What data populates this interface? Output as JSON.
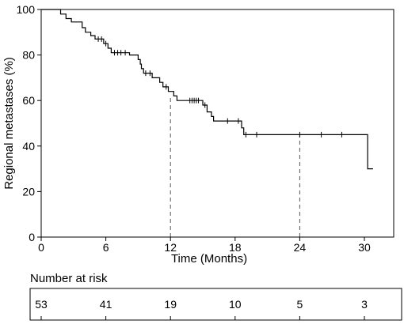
{
  "chart_data": {
    "type": "line",
    "step": true,
    "xlabel": "Time (Months)",
    "ylabel": "Regional metastases (%)",
    "xlim": [
      0,
      31
    ],
    "ylim": [
      0,
      100
    ],
    "xticks": [
      0,
      6,
      12,
      18,
      24,
      30
    ],
    "yticks": [
      0,
      20,
      40,
      60,
      80,
      100
    ],
    "grid": false,
    "series": [
      {
        "points": [
          [
            0,
            100
          ],
          [
            1.8,
            100
          ],
          [
            1.8,
            98
          ],
          [
            2.3,
            98
          ],
          [
            2.3,
            96
          ],
          [
            2.8,
            96
          ],
          [
            2.8,
            94.5
          ],
          [
            3.8,
            94.5
          ],
          [
            3.8,
            92
          ],
          [
            4.1,
            92
          ],
          [
            4.1,
            90
          ],
          [
            4.6,
            90
          ],
          [
            4.6,
            88.5
          ],
          [
            5.0,
            88.5
          ],
          [
            5.0,
            87
          ],
          [
            5.8,
            87
          ],
          [
            5.8,
            85
          ],
          [
            6.2,
            85
          ],
          [
            6.2,
            83
          ],
          [
            6.5,
            83
          ],
          [
            6.5,
            81
          ],
          [
            8.2,
            81
          ],
          [
            8.2,
            80
          ],
          [
            9.0,
            80
          ],
          [
            9.0,
            78
          ],
          [
            9.2,
            78
          ],
          [
            9.2,
            76
          ],
          [
            9.3,
            76
          ],
          [
            9.3,
            74
          ],
          [
            9.5,
            74
          ],
          [
            9.5,
            72
          ],
          [
            10.3,
            72
          ],
          [
            10.3,
            70
          ],
          [
            11.0,
            70
          ],
          [
            11.0,
            68
          ],
          [
            11.3,
            68
          ],
          [
            11.3,
            66
          ],
          [
            11.8,
            66
          ],
          [
            11.8,
            64
          ],
          [
            12.3,
            64
          ],
          [
            12.3,
            62
          ],
          [
            12.6,
            62
          ],
          [
            12.6,
            60
          ],
          [
            15.0,
            60
          ],
          [
            15.0,
            58
          ],
          [
            15.4,
            58
          ],
          [
            15.4,
            55
          ],
          [
            15.8,
            55
          ],
          [
            15.8,
            53
          ],
          [
            16.0,
            53
          ],
          [
            16.0,
            51
          ],
          [
            18.6,
            51
          ],
          [
            18.6,
            48
          ],
          [
            18.8,
            48
          ],
          [
            18.8,
            45
          ],
          [
            30.3,
            45
          ],
          [
            30.3,
            30
          ],
          [
            30.8,
            30
          ]
        ],
        "censored": [
          [
            5.3,
            87
          ],
          [
            5.6,
            87
          ],
          [
            6.0,
            85
          ],
          [
            6.8,
            81
          ],
          [
            7.1,
            81
          ],
          [
            7.4,
            81
          ],
          [
            7.8,
            81
          ],
          [
            9.7,
            72
          ],
          [
            10.1,
            72
          ],
          [
            11.6,
            66
          ],
          [
            13.8,
            60
          ],
          [
            14.0,
            60
          ],
          [
            14.2,
            60
          ],
          [
            14.4,
            60
          ],
          [
            14.6,
            60
          ],
          [
            15.2,
            58
          ],
          [
            17.3,
            51
          ],
          [
            18.3,
            51
          ],
          [
            19.0,
            45
          ],
          [
            20.0,
            45
          ],
          [
            24.0,
            45
          ],
          [
            26.0,
            45
          ],
          [
            27.9,
            45
          ]
        ]
      }
    ],
    "median_markers": [
      {
        "x": 12,
        "y": 62
      },
      {
        "x": 24,
        "y": 45
      }
    ]
  },
  "risk_table": {
    "title": "Number at risk",
    "times": [
      0,
      6,
      12,
      18,
      24,
      30
    ],
    "values": [
      "53",
      "41",
      "19",
      "10",
      "5",
      "3"
    ]
  }
}
